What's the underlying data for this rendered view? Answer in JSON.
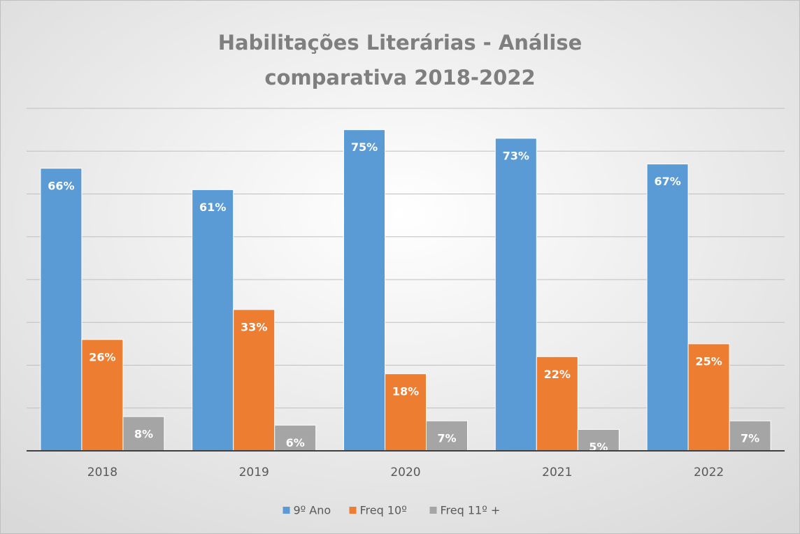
{
  "chart_data": {
    "type": "bar",
    "title": "Habilitações Literárias - Análise comparativa 2018-2022",
    "categories": [
      "2018",
      "2019",
      "2020",
      "2021",
      "2022"
    ],
    "series": [
      {
        "name": "9º Ano",
        "color": "#5b9bd5",
        "values": [
          66,
          61,
          75,
          73,
          67
        ],
        "value_labels": [
          "66%",
          "61%",
          "75%",
          "73%",
          "67%"
        ]
      },
      {
        "name": "Freq 10º",
        "color": "#ed7d31",
        "values": [
          26,
          33,
          18,
          22,
          25
        ],
        "value_labels": [
          "26%",
          "33%",
          "18%",
          "22%",
          "25%"
        ]
      },
      {
        "name": "Freq 11º +",
        "color": "#a5a5a5",
        "values": [
          8,
          6,
          7,
          5,
          7
        ],
        "value_labels": [
          "8%",
          "6%",
          "7%",
          "5%",
          "7%"
        ]
      }
    ],
    "ylim": [
      0,
      80
    ],
    "yticks": [
      0,
      10,
      20,
      30,
      40,
      50,
      60,
      70,
      80
    ],
    "grid": true,
    "legend": "bottom"
  }
}
